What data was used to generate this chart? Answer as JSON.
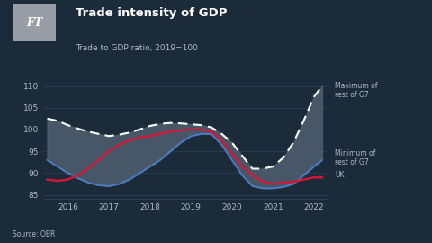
{
  "title": "Trade intensity of GDP",
  "subtitle": "Trade to GDP ratio, 2019=100",
  "source": "Source: OBR",
  "bg_color": "#1c2b3a",
  "text_color": "#b0b8c4",
  "title_color": "#ffffff",
  "ylim": [
    84,
    113
  ],
  "yticks": [
    85,
    90,
    95,
    100,
    105,
    110
  ],
  "years": [
    2015.5,
    2015.75,
    2016.0,
    2016.25,
    2016.5,
    2016.75,
    2017.0,
    2017.25,
    2017.5,
    2017.75,
    2018.0,
    2018.25,
    2018.5,
    2018.75,
    2019.0,
    2019.25,
    2019.5,
    2019.75,
    2020.0,
    2020.25,
    2020.5,
    2020.75,
    2021.0,
    2021.25,
    2021.5,
    2021.75,
    2022.0,
    2022.2
  ],
  "max_g7": [
    102.5,
    102.0,
    101.0,
    100.2,
    99.5,
    99.0,
    98.5,
    98.8,
    99.3,
    100.0,
    100.8,
    101.3,
    101.5,
    101.4,
    101.2,
    101.0,
    100.5,
    99.0,
    97.0,
    94.0,
    91.0,
    91.0,
    91.5,
    93.5,
    97.0,
    102.0,
    107.5,
    110.0
  ],
  "min_g7": [
    93.0,
    91.5,
    90.0,
    88.8,
    87.8,
    87.2,
    87.0,
    87.5,
    88.5,
    90.0,
    91.5,
    93.0,
    95.0,
    97.0,
    98.5,
    99.0,
    99.0,
    96.5,
    93.0,
    89.5,
    87.0,
    86.5,
    86.5,
    86.8,
    87.5,
    89.5,
    91.5,
    93.0
  ],
  "uk": [
    88.5,
    88.2,
    88.5,
    89.5,
    91.0,
    93.0,
    95.0,
    96.5,
    97.5,
    98.2,
    98.5,
    99.0,
    99.5,
    99.8,
    100.0,
    100.0,
    99.5,
    97.5,
    94.5,
    91.5,
    89.5,
    88.0,
    87.5,
    87.8,
    88.0,
    88.5,
    89.0,
    89.0
  ],
  "xtick_years": [
    2016,
    2017,
    2018,
    2019,
    2020,
    2021,
    2022
  ],
  "annotation_max": "Maximum of\nrest of G7",
  "annotation_min": "Minimum of\nrest of G7",
  "annotation_uk": "UK",
  "grid_color": "#2e4255",
  "max_color": "#ffffff",
  "min_color": "#4a7cc7",
  "uk_color": "#cc1a3a",
  "fill_color": "#506070",
  "ft_logo_bg": "#999ea6",
  "ft_logo_text": "#ffffff"
}
